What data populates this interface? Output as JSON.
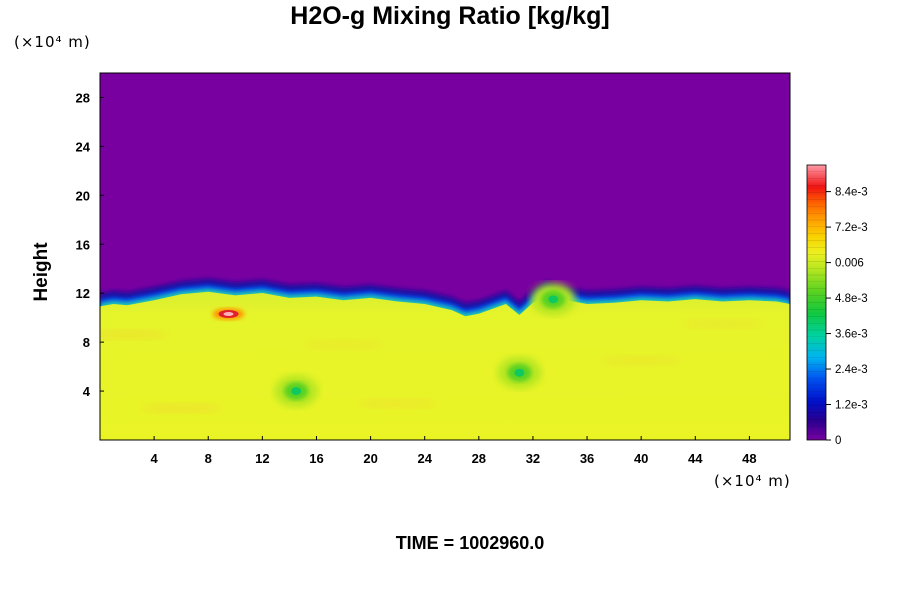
{
  "chart_data": {
    "type": "heatmap",
    "title": "H2O-g Mixing Ratio [kg/kg]",
    "ylabel": "Height",
    "xlabel": "",
    "x_unit": "(×10⁴ m)",
    "y_unit": "(×10⁴ m)",
    "xlim": [
      0,
      51
    ],
    "ylim": [
      0,
      30
    ],
    "x_ticks": [
      "4",
      "8",
      "12",
      "16",
      "20",
      "24",
      "28",
      "32",
      "36",
      "40",
      "44",
      "48"
    ],
    "y_ticks": [
      "4",
      "8",
      "12",
      "16",
      "20",
      "24",
      "28"
    ],
    "colorbar": {
      "min": 0,
      "max": 0.0093,
      "tick_labels": [
        "0",
        "1.2e-3",
        "2.4e-3",
        "3.6e-3",
        "4.8e-3",
        "0.006",
        "7.2e-3",
        "8.4e-3"
      ],
      "tick_values": [
        0,
        0.0012,
        0.0024,
        0.0036,
        0.0048,
        0.006,
        0.0072,
        0.0084
      ]
    },
    "field_summary": {
      "upper_layer_value": 0,
      "lower_layer_value": 0.0058,
      "interface_height_profile": [
        [
          0,
          11.0
        ],
        [
          1,
          11.2
        ],
        [
          2,
          11.1
        ],
        [
          4,
          11.5
        ],
        [
          6,
          12.0
        ],
        [
          8,
          12.2
        ],
        [
          10,
          11.9
        ],
        [
          12,
          12.1
        ],
        [
          14,
          11.7
        ],
        [
          16,
          11.8
        ],
        [
          18,
          11.5
        ],
        [
          20,
          11.7
        ],
        [
          22,
          11.4
        ],
        [
          24,
          11.2
        ],
        [
          26,
          10.7
        ],
        [
          27,
          10.2
        ],
        [
          28,
          10.4
        ],
        [
          30,
          11.2
        ],
        [
          31,
          10.3
        ],
        [
          32,
          11.3
        ],
        [
          33,
          12.0
        ],
        [
          34,
          11.6
        ],
        [
          36,
          11.2
        ],
        [
          38,
          11.3
        ],
        [
          40,
          11.5
        ],
        [
          42,
          11.4
        ],
        [
          44,
          11.6
        ],
        [
          46,
          11.4
        ],
        [
          48,
          11.5
        ],
        [
          50,
          11.4
        ],
        [
          51,
          11.2
        ]
      ],
      "moist_anomalies": [
        {
          "x": 9.5,
          "y": 10.3,
          "value": 0.0093
        },
        {
          "x": 14.5,
          "y": 4.0,
          "value": 0.0045
        },
        {
          "x": 31.0,
          "y": 5.5,
          "value": 0.0042
        },
        {
          "x": 33.5,
          "y": 11.5,
          "value": 0.004
        }
      ]
    }
  },
  "footer": {
    "time_label": "TIME = 1002960.0"
  },
  "colors": {
    "dry": "#7800a0",
    "moist": "#e3f22a",
    "background": "#ffffff"
  }
}
